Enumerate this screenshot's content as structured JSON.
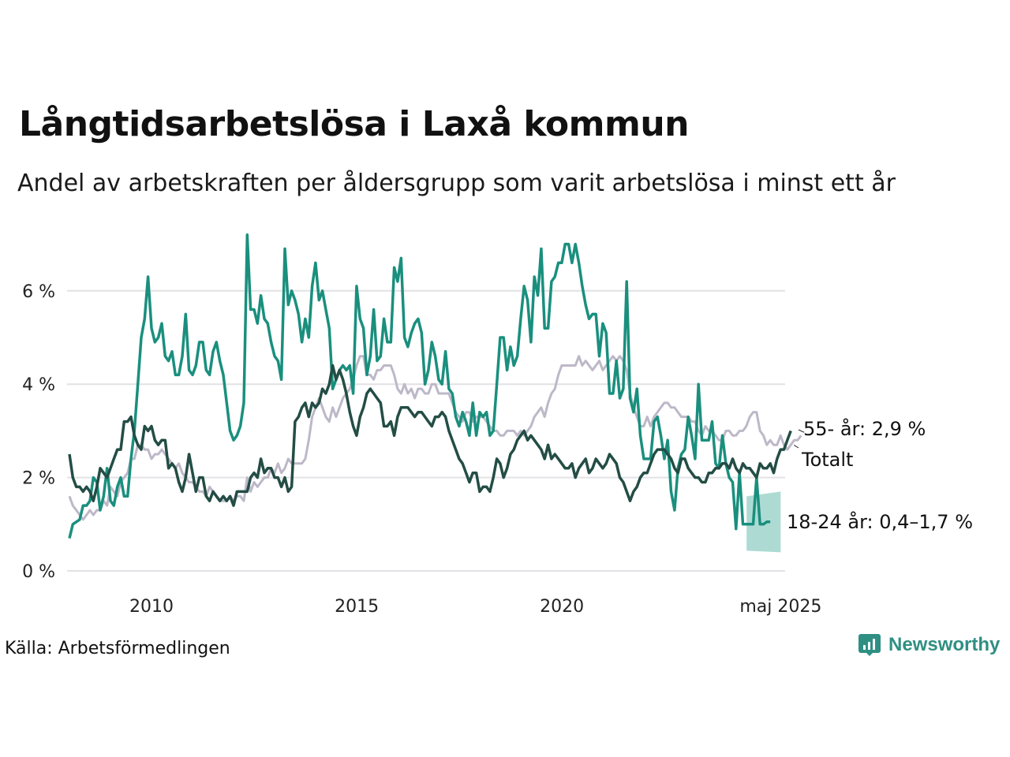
{
  "title": "Långtidsarbetslösa i Laxå kommun",
  "subtitle": "Andel av arbetskraften per åldersgrupp som varit arbetslösa i minst ett år",
  "source": "Källa: Arbetsförmedlingen",
  "brand": "Newsworthy",
  "colors": {
    "young": "#1a8f7e",
    "old": "#bdb8c8",
    "total": "#234d45",
    "band": "#a9d9d2",
    "grid": "#e2e2e6",
    "brand": "#2f8f83"
  },
  "chart_data": {
    "type": "line",
    "ylim": [
      0,
      7.3
    ],
    "xlim": [
      2008.0,
      2025.4
    ],
    "yticks": [
      0,
      2,
      4,
      6
    ],
    "ytick_labels": [
      "0 %",
      "2 %",
      "4 %",
      "6 %"
    ],
    "xticks": [
      2010,
      2015,
      2020,
      2025.33
    ],
    "xtick_labels": [
      "2010",
      "2015",
      "2020",
      "maj 2025"
    ],
    "grid": "horizontal",
    "annotations": {
      "old": "55- år: 2,9 %",
      "total": "Totalt",
      "young": "18-24 år: 0,4–1,7 %"
    },
    "series": [
      {
        "key": "young",
        "x_start": 2008.0,
        "step": 0.0833,
        "values": [
          0.7,
          1.0,
          1.05,
          1.1,
          1.4,
          1.4,
          1.5,
          2.0,
          1.9,
          1.3,
          1.6,
          2.2,
          1.5,
          1.4,
          1.8,
          2.0,
          1.6,
          1.6,
          2.4,
          3.0,
          4.0,
          5.0,
          5.4,
          6.3,
          5.2,
          4.9,
          5.0,
          5.3,
          4.6,
          4.5,
          4.7,
          4.2,
          4.2,
          4.6,
          5.5,
          4.3,
          4.2,
          4.4,
          4.9,
          4.9,
          4.3,
          4.2,
          4.7,
          4.9,
          4.5,
          4.2,
          3.6,
          3.0,
          2.8,
          2.9,
          3.1,
          3.6,
          7.2,
          5.6,
          5.6,
          5.3,
          5.9,
          5.4,
          5.3,
          4.9,
          4.6,
          4.5,
          4.1,
          6.9,
          5.7,
          6.0,
          5.8,
          5.5,
          4.9,
          5.4,
          5.0,
          6.1,
          6.6,
          5.8,
          6.0,
          5.6,
          5.2,
          3.9,
          4.1,
          4.3,
          4.4,
          4.3,
          4.4,
          3.8,
          6.1,
          5.4,
          5.2,
          4.2,
          4.6,
          5.6,
          4.5,
          4.6,
          5.4,
          4.9,
          4.9,
          6.5,
          6.2,
          6.7,
          5.0,
          4.8,
          5.1,
          5.3,
          5.4,
          5.1,
          4.0,
          4.3,
          4.9,
          4.6,
          4.1,
          4.0,
          4.7,
          3.9,
          3.8,
          3.3,
          3.1,
          3.4,
          3.2,
          2.9,
          3.6,
          2.9,
          3.4,
          3.3,
          3.4,
          2.9,
          3.0,
          4.0,
          5.0,
          5.0,
          4.3,
          4.8,
          4.4,
          4.6,
          5.4,
          6.1,
          5.8,
          4.9,
          6.3,
          5.9,
          6.9,
          5.2,
          5.2,
          6.2,
          6.3,
          6.6,
          6.6,
          7.0,
          7.0,
          6.6,
          7.0,
          6.6,
          6.1,
          5.7,
          5.4,
          5.5,
          5.5,
          4.6,
          5.3,
          5.1,
          3.8,
          3.8,
          4.5,
          3.7,
          3.9,
          6.2,
          3.7,
          3.4,
          3.9,
          2.9,
          2.4,
          2.4,
          2.4,
          3.2,
          3.3,
          2.9,
          2.4,
          2.8,
          1.7,
          1.3,
          2.2,
          2.5,
          2.6,
          3.3,
          2.9,
          2.4,
          4.0,
          2.8,
          2.8,
          2.8,
          3.2,
          2.3,
          2.2,
          2.9,
          2.3,
          2.0,
          1.9,
          0.9,
          2.1,
          1.0,
          1.0,
          1.0,
          1.0,
          2.0,
          1.0,
          1.0,
          1.05,
          1.05
        ]
      },
      {
        "key": "old",
        "x_start": 2008.0,
        "step": 0.0833,
        "values": [
          1.6,
          1.4,
          1.3,
          1.2,
          1.1,
          1.2,
          1.3,
          1.2,
          1.3,
          1.3,
          1.5,
          1.4,
          1.8,
          1.7,
          1.6,
          1.9,
          2.0,
          2.1,
          2.4,
          2.4,
          2.7,
          2.7,
          2.6,
          2.6,
          2.4,
          2.5,
          2.5,
          2.6,
          2.5,
          2.4,
          2.3,
          2.2,
          2.3,
          2.1,
          2.0,
          1.9,
          1.9,
          1.8,
          1.7,
          1.7,
          1.6,
          1.8,
          1.7,
          1.6,
          1.5,
          1.5,
          1.5,
          1.6,
          1.5,
          1.6,
          1.6,
          1.5,
          2.0,
          1.7,
          1.9,
          1.8,
          1.9,
          2.0,
          2.0,
          2.2,
          2.1,
          2.3,
          2.1,
          2.2,
          2.4,
          2.3,
          2.3,
          2.3,
          2.3,
          2.4,
          2.8,
          3.3,
          3.5,
          3.7,
          3.5,
          3.3,
          3.2,
          3.5,
          3.3,
          3.5,
          3.7,
          3.8,
          3.9,
          4.1,
          4.4,
          4.6,
          4.6,
          4.2,
          4.2,
          4.1,
          4.3,
          4.3,
          4.4,
          4.4,
          4.4,
          4.2,
          3.9,
          3.8,
          4.0,
          3.8,
          3.9,
          3.7,
          3.9,
          3.9,
          3.8,
          3.8,
          4.0,
          4.0,
          3.8,
          3.8,
          3.8,
          3.8,
          3.6,
          3.4,
          3.3,
          3.2,
          3.4,
          3.4,
          3.2,
          3.3,
          3.3,
          3.3,
          3.2,
          3.1,
          3.0,
          3.0,
          2.9,
          2.9,
          3.0,
          3.0,
          3.0,
          2.9,
          3.0,
          2.9,
          3.0,
          3.1,
          3.3,
          3.4,
          3.5,
          3.3,
          3.6,
          3.8,
          3.9,
          4.2,
          4.4,
          4.4,
          4.4,
          4.4,
          4.4,
          4.6,
          4.4,
          4.5,
          4.4,
          4.3,
          4.4,
          4.5,
          4.3,
          4.4,
          4.5,
          4.6,
          4.5,
          4.6,
          4.5,
          4.3,
          3.8,
          3.5,
          3.3,
          3.1,
          3.1,
          3.3,
          3.1,
          3.3,
          3.4,
          3.5,
          3.6,
          3.6,
          3.5,
          3.5,
          3.4,
          3.3,
          3.3,
          3.3,
          3.2,
          3.2,
          3.0,
          2.9,
          3.1,
          3.0,
          3.0,
          2.9,
          2.8,
          2.8,
          3.0,
          3.0,
          2.9,
          2.9,
          3.0,
          3.0,
          3.1,
          3.3,
          3.4,
          3.4,
          3.0,
          2.9,
          2.7,
          2.8,
          2.7,
          2.7,
          2.9,
          2.7,
          2.6,
          2.7,
          2.8,
          2.8,
          2.9
        ]
      },
      {
        "key": "total",
        "x_start": 2008.0,
        "step": 0.0833,
        "values": [
          2.5,
          2.0,
          1.8,
          1.8,
          1.7,
          1.8,
          1.7,
          1.5,
          1.8,
          2.2,
          2.1,
          2.0,
          2.2,
          2.4,
          2.6,
          2.6,
          3.2,
          3.2,
          3.3,
          2.9,
          2.7,
          2.6,
          3.1,
          3.0,
          3.1,
          2.8,
          2.7,
          2.8,
          2.8,
          2.2,
          2.3,
          2.2,
          1.9,
          1.7,
          2.0,
          2.5,
          2.1,
          1.7,
          2.0,
          2.0,
          1.6,
          1.5,
          1.7,
          1.6,
          1.5,
          1.6,
          1.5,
          1.6,
          1.4,
          1.7,
          1.7,
          1.7,
          1.7,
          2.0,
          2.1,
          2.0,
          2.4,
          2.1,
          2.2,
          2.2,
          2.0,
          2.0,
          1.8,
          2.0,
          1.7,
          1.8,
          3.2,
          3.3,
          3.5,
          3.6,
          3.3,
          3.6,
          3.5,
          3.6,
          3.9,
          3.8,
          4.0,
          4.4,
          4.1,
          4.3,
          4.1,
          3.8,
          3.4,
          3.1,
          2.9,
          3.3,
          3.5,
          3.8,
          3.9,
          3.8,
          3.7,
          3.6,
          3.1,
          3.1,
          3.2,
          2.9,
          3.3,
          3.5,
          3.5,
          3.5,
          3.4,
          3.3,
          3.4,
          3.4,
          3.3,
          3.2,
          3.1,
          3.3,
          3.3,
          3.4,
          3.3,
          3.0,
          2.8,
          2.6,
          2.4,
          2.3,
          2.1,
          1.9,
          2.1,
          2.1,
          1.7,
          1.8,
          1.8,
          1.7,
          2.0,
          2.4,
          2.3,
          2.0,
          2.2,
          2.5,
          2.6,
          2.8,
          2.9,
          3.0,
          2.8,
          2.9,
          2.8,
          2.7,
          2.6,
          2.4,
          2.7,
          2.4,
          2.5,
          2.4,
          2.3,
          2.2,
          2.2,
          2.3,
          2.0,
          2.2,
          2.3,
          2.4,
          2.1,
          2.2,
          2.4,
          2.3,
          2.2,
          2.3,
          2.5,
          2.4,
          2.3,
          2.0,
          1.9,
          1.7,
          1.5,
          1.7,
          1.8,
          2.0,
          2.1,
          2.1,
          2.3,
          2.5,
          2.6,
          2.6,
          2.6,
          2.5,
          2.4,
          2.2,
          2.1,
          2.4,
          2.4,
          2.2,
          2.1,
          2.0,
          2.0,
          1.9,
          1.9,
          2.1,
          2.1,
          2.2,
          2.2,
          2.3,
          2.3,
          2.2,
          2.4,
          2.2,
          2.1,
          2.3,
          2.2,
          2.2,
          2.1,
          2.0,
          2.3,
          2.2,
          2.2,
          2.3,
          2.1,
          2.4,
          2.6,
          2.6,
          2.8,
          3.0
        ]
      }
    ],
    "band": {
      "key": "young",
      "x_start": 2024.5,
      "x_end": 2025.33,
      "low": 0.4,
      "high": 1.7
    }
  }
}
